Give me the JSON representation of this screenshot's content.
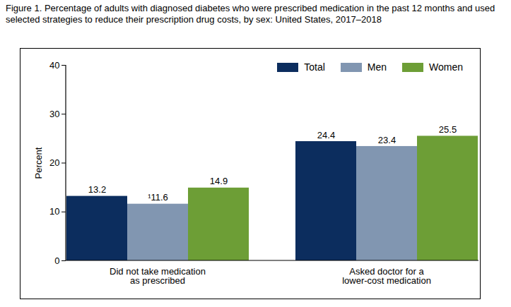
{
  "chart_data": {
    "type": "bar",
    "title": "Figure 1. Percentage of adults with diagnosed diabetes who were prescribed medication in the past 12 months and used selected strategies to reduce their prescription drug costs, by sex: United States, 2017–2018",
    "y_label": "Percent",
    "categories": [
      "Did not take medication\nas prescribed",
      "Asked doctor for a\nlower-cost medication"
    ],
    "series": [
      {
        "name": "Total",
        "color": "#0c2d5e",
        "values": [
          13.2,
          24.4
        ]
      },
      {
        "name": "Men",
        "color": "#8196b1",
        "values": [
          11.6,
          23.4
        ],
        "value_labels": [
          "¹11.6",
          "23.4"
        ]
      },
      {
        "name": "Women",
        "color": "#6d9e36",
        "values": [
          14.9,
          25.5
        ]
      }
    ],
    "ylim": [
      0,
      40
    ],
    "yticks": [
      0,
      10,
      20,
      30,
      40
    ],
    "grid": false,
    "legend": "top-right",
    "data_labels": true
  }
}
